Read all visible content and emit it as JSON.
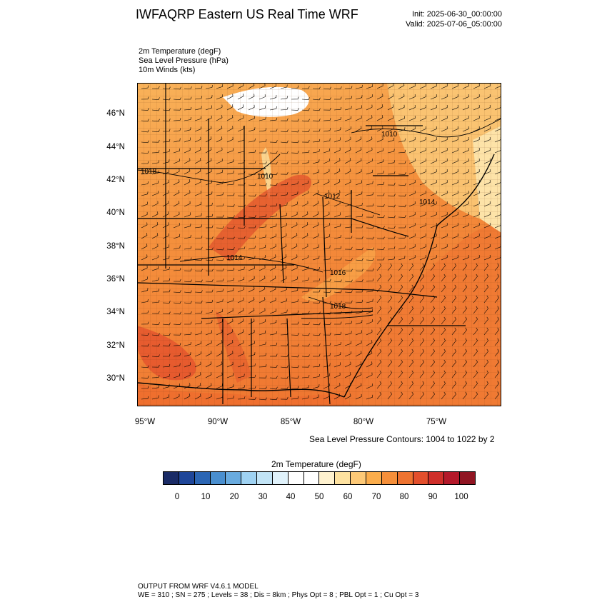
{
  "header": {
    "title": "IWFAQRP Eastern US Real Time WRF",
    "init": "Init: 2025-06-30_00:00:00",
    "valid": "Valid: 2025-07-06_05:00:00"
  },
  "fields": [
    "2m Temperature   (degF)",
    "Sea Level Pressure   (hPa)",
    "10m Winds   (kts)"
  ],
  "axes": {
    "lat_labels": [
      "46°N",
      "44°N",
      "42°N",
      "40°N",
      "38°N",
      "36°N",
      "34°N",
      "32°N",
      "30°N"
    ],
    "lon_labels": [
      "95°W",
      "90°W",
      "85°W",
      "80°W",
      "75°W"
    ]
  },
  "isobars": [
    "1010",
    "1010",
    "1012",
    "1014",
    "1016",
    "1018",
    "1018",
    "1014"
  ],
  "contour_note": "Sea Level Pressure Contours: 1004 to 1022 by 2",
  "colorbar": {
    "title": "2m Temperature  (degF)",
    "labels": [
      "0",
      "10",
      "20",
      "30",
      "40",
      "50",
      "60",
      "70",
      "80",
      "90",
      "100"
    ],
    "colors": [
      "#1a2b66",
      "#1f4699",
      "#2c66b4",
      "#4a8fcf",
      "#69abdf",
      "#9fd2f2",
      "#c2e4f6",
      "#e0f2fb",
      "#ffffff",
      "#ffffff",
      "#fff2cf",
      "#fee2a0",
      "#fdc977",
      "#fbad4c",
      "#f58f3a",
      "#ee7330",
      "#e34f2c",
      "#cf2f2a",
      "#b4192a",
      "#901522"
    ]
  },
  "footer": {
    "line1": "OUTPUT FROM WRF V4.6.1 MODEL",
    "line2": "WE = 310 ; SN = 275 ; Levels = 38 ; Dis = 8km ; Phys Opt = 8 ; PBL Opt = 1 ; Cu Opt = 3"
  }
}
